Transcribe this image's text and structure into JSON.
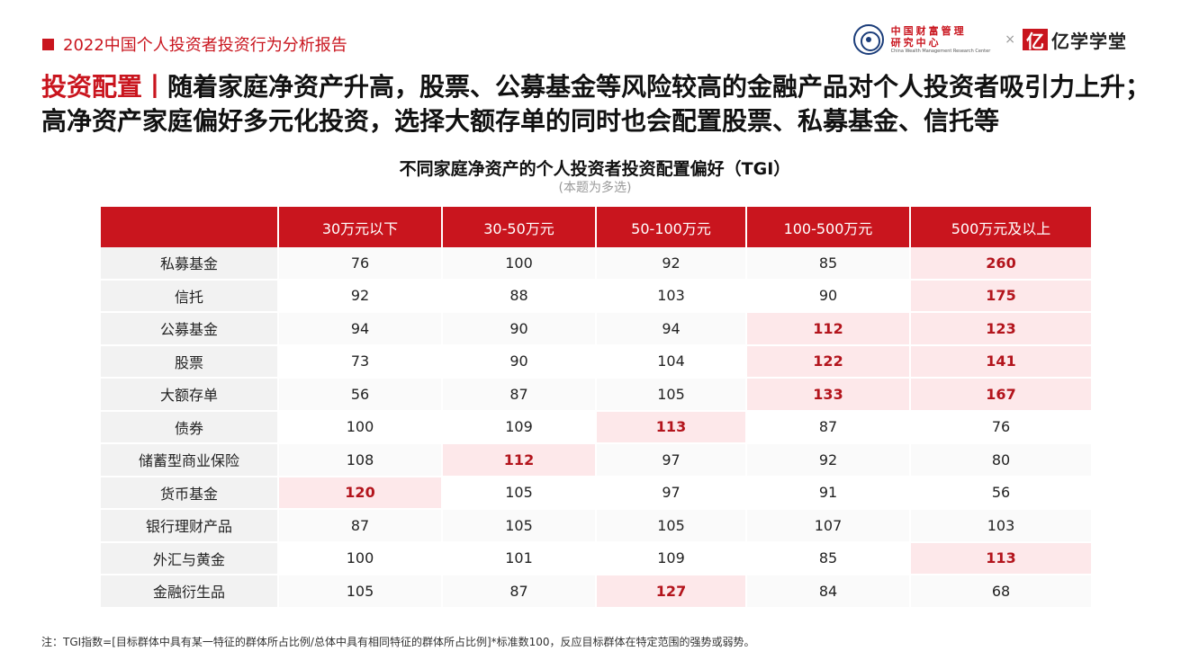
{
  "report": {
    "title": "2022中国个人投资者投资行为分析报告"
  },
  "logos": {
    "center_name_cn": "中国财富管理研究中心",
    "center_name_en": "China Wealth Management Research Center",
    "separator": "×",
    "brand_mark": "亿",
    "brand_name": "亿学学堂",
    "accent_color": "#c9151e"
  },
  "headline": {
    "label": "投资配置",
    "divider": "丨",
    "text": "随着家庭净资产升高，股票、公募基金等风险较高的金融产品对个人投资者吸引力上升；高净资产家庭偏好多元化投资，选择大额存单的同时也会配置股票、私募基金、信托等"
  },
  "table": {
    "title": "不同家庭净资产的个人投资者投资配置偏好（TGI）",
    "subtitle": "(本题为多选)",
    "columns": [
      "",
      "30万元以下",
      "30-50万元",
      "50-100万元",
      "100-500万元",
      "500万元及以上"
    ],
    "rows": [
      {
        "label": "私募基金",
        "values": [
          "76",
          "100",
          "92",
          "85",
          "260"
        ],
        "highlight": [
          false,
          false,
          false,
          false,
          true
        ]
      },
      {
        "label": "信托",
        "values": [
          "92",
          "88",
          "103",
          "90",
          "175"
        ],
        "highlight": [
          false,
          false,
          false,
          false,
          true
        ]
      },
      {
        "label": "公募基金",
        "values": [
          "94",
          "90",
          "94",
          "112",
          "123"
        ],
        "highlight": [
          false,
          false,
          false,
          true,
          true
        ]
      },
      {
        "label": "股票",
        "values": [
          "73",
          "90",
          "104",
          "122",
          "141"
        ],
        "highlight": [
          false,
          false,
          false,
          true,
          true
        ]
      },
      {
        "label": "大额存单",
        "values": [
          "56",
          "87",
          "105",
          "133",
          "167"
        ],
        "highlight": [
          false,
          false,
          false,
          true,
          true
        ]
      },
      {
        "label": "债券",
        "values": [
          "100",
          "109",
          "113",
          "87",
          "76"
        ],
        "highlight": [
          false,
          false,
          true,
          false,
          false
        ]
      },
      {
        "label": "储蓄型商业保险",
        "values": [
          "108",
          "112",
          "97",
          "92",
          "80"
        ],
        "highlight": [
          false,
          true,
          false,
          false,
          false
        ]
      },
      {
        "label": "货币基金",
        "values": [
          "120",
          "105",
          "97",
          "91",
          "56"
        ],
        "highlight": [
          true,
          false,
          false,
          false,
          false
        ]
      },
      {
        "label": "银行理财产品",
        "values": [
          "87",
          "105",
          "105",
          "107",
          "103"
        ],
        "highlight": [
          false,
          false,
          false,
          false,
          false
        ]
      },
      {
        "label": "外汇与黄金",
        "values": [
          "100",
          "101",
          "109",
          "85",
          "113"
        ],
        "highlight": [
          false,
          false,
          false,
          false,
          true
        ]
      },
      {
        "label": "金融衍生品",
        "values": [
          "105",
          "87",
          "127",
          "84",
          "68"
        ],
        "highlight": [
          false,
          false,
          true,
          false,
          false
        ]
      }
    ]
  },
  "footnote": "注：TGI指数=[目标群体中具有某一特征的群体所占比例/总体中具有相同特征的群体所占比例]*标准数100，反应目标群体在特定范围的强势或弱势。"
}
